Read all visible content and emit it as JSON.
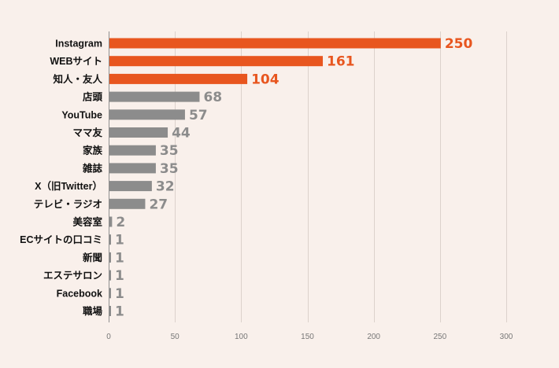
{
  "chart_data": {
    "type": "bar",
    "orientation": "horizontal",
    "title": "",
    "xlabel": "",
    "ylabel": "",
    "xlim": [
      0,
      300
    ],
    "xticks": [
      0,
      50,
      100,
      150,
      200,
      250,
      300
    ],
    "grid": true,
    "categories": [
      "Instagram",
      "WEBサイト",
      "知人・友人",
      "店頭",
      "YouTube",
      "ママ友",
      "家族",
      "雑誌",
      "X（旧Twitter）",
      "テレビ・ラジオ",
      "美容室",
      "ECサイトの口コミ",
      "新聞",
      "エステサロン",
      "Facebook",
      "職場"
    ],
    "values": [
      250,
      161,
      104,
      68,
      57,
      44,
      35,
      35,
      32,
      27,
      2,
      1,
      1,
      1,
      1,
      1
    ],
    "highlight_count": 3,
    "colors": {
      "highlight_bar": "#e8561f",
      "highlight_text": "#e8561f",
      "normal_bar": "#8c8c8c",
      "normal_text": "#8c8c8c",
      "category_text": "#111111",
      "tick_text": "#777777",
      "grid": "#dcd2cc",
      "background": "#f9f0eb"
    }
  }
}
